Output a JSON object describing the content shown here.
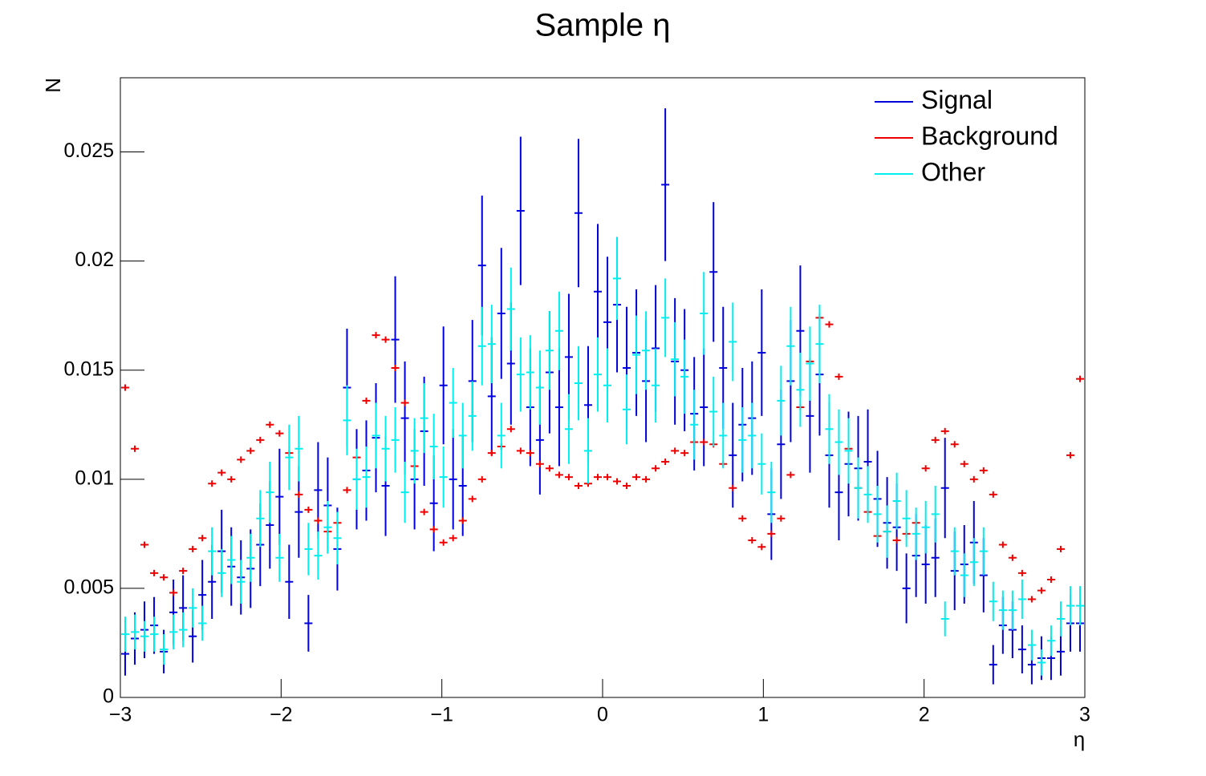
{
  "chart_data": {
    "type": "errorbar",
    "title": "Sample η",
    "x_label": "η",
    "y_label": "N",
    "x": [
      -2.97,
      -2.91,
      -2.85,
      -2.79,
      -2.73,
      -2.67,
      -2.61,
      -2.55,
      -2.49,
      -2.43,
      -2.37,
      -2.31,
      -2.25,
      -2.19,
      -2.13,
      -2.07,
      -2.01,
      -1.95,
      -1.89,
      -1.83,
      -1.77,
      -1.71,
      -1.65,
      -1.59,
      -1.53,
      -1.47,
      -1.41,
      -1.35,
      -1.29,
      -1.23,
      -1.17,
      -1.11,
      -1.05,
      -0.99,
      -0.93,
      -0.87,
      -0.81,
      -0.75,
      -0.69,
      -0.63,
      -0.57,
      -0.51,
      -0.45,
      -0.39,
      -0.33,
      -0.27,
      -0.21,
      -0.15,
      -0.09,
      -0.03,
      0.03,
      0.09,
      0.15,
      0.21,
      0.27,
      0.33,
      0.39,
      0.45,
      0.51,
      0.57,
      0.63,
      0.69,
      0.75,
      0.81,
      0.87,
      0.93,
      0.99,
      1.05,
      1.11,
      1.17,
      1.23,
      1.29,
      1.35,
      1.41,
      1.47,
      1.53,
      1.59,
      1.65,
      1.71,
      1.77,
      1.83,
      1.89,
      1.95,
      2.01,
      2.07,
      2.13,
      2.19,
      2.25,
      2.31,
      2.37,
      2.43,
      2.49,
      2.55,
      2.61,
      2.67,
      2.73,
      2.79,
      2.85,
      2.91,
      2.97
    ],
    "series": [
      {
        "name": "Signal",
        "color": "#0000dd",
        "values": [
          0.002,
          0.0027,
          0.0031,
          0.0033,
          0.0021,
          0.0039,
          0.0041,
          0.0028,
          0.0047,
          0.0053,
          0.0067,
          0.006,
          0.0055,
          0.0059,
          0.007,
          0.0079,
          0.0092,
          0.0053,
          0.0085,
          0.0034,
          0.0095,
          0.0088,
          0.0068,
          0.0142,
          0.01,
          0.0104,
          0.0119,
          0.0097,
          0.0164,
          0.0128,
          0.01,
          0.0122,
          0.0089,
          0.0143,
          0.01,
          0.0097,
          0.0145,
          0.0198,
          0.0138,
          0.0176,
          0.0153,
          0.0223,
          0.0133,
          0.0118,
          0.0149,
          0.0133,
          0.0156,
          0.0222,
          0.0134,
          0.0186,
          0.0172,
          0.018,
          0.0151,
          0.0158,
          0.0145,
          0.016,
          0.0235,
          0.0154,
          0.015,
          0.013,
          0.0133,
          0.0195,
          0.0151,
          0.0111,
          0.0125,
          0.0128,
          0.0158,
          0.0084,
          0.0116,
          0.0145,
          0.0168,
          0.0129,
          0.0148,
          0.0111,
          0.0094,
          0.0107,
          0.0105,
          0.0108,
          0.0091,
          0.008,
          0.0078,
          0.005,
          0.0065,
          0.0061,
          0.0064,
          0.0096,
          0.0058,
          0.0061,
          0.0071,
          0.0056,
          0.0015,
          0.0033,
          0.0031,
          0.0022,
          0.0015,
          0.0018,
          0.0018,
          0.0021,
          0.0034,
          0.0034
        ],
        "errors": [
          0.001,
          0.0012,
          0.0013,
          0.0013,
          0.001,
          0.0015,
          0.0015,
          0.0012,
          0.0016,
          0.0017,
          0.0019,
          0.0018,
          0.0017,
          0.0018,
          0.0019,
          0.002,
          0.0022,
          0.0017,
          0.0021,
          0.0013,
          0.0022,
          0.0022,
          0.0019,
          0.0027,
          0.0023,
          0.0023,
          0.0025,
          0.0023,
          0.0029,
          0.0026,
          0.0023,
          0.0025,
          0.0022,
          0.0027,
          0.0023,
          0.0023,
          0.0028,
          0.0032,
          0.0027,
          0.003,
          0.0028,
          0.0034,
          0.0027,
          0.0025,
          0.0028,
          0.0027,
          0.0029,
          0.0034,
          0.0027,
          0.0031,
          0.003,
          0.0031,
          0.0028,
          0.0029,
          0.0028,
          0.0029,
          0.0035,
          0.0029,
          0.0028,
          0.0026,
          0.0027,
          0.0032,
          0.0028,
          0.0024,
          0.0026,
          0.0026,
          0.0029,
          0.0021,
          0.0025,
          0.0028,
          0.003,
          0.0026,
          0.0028,
          0.0024,
          0.0022,
          0.0024,
          0.0024,
          0.0024,
          0.0022,
          0.0021,
          0.002,
          0.0016,
          0.0019,
          0.0018,
          0.0018,
          0.0023,
          0.0018,
          0.0018,
          0.0019,
          0.0017,
          0.0009,
          0.0013,
          0.0013,
          0.0011,
          0.0009,
          0.001,
          0.001,
          0.0011,
          0.0013,
          0.0013
        ]
      },
      {
        "name": "Background",
        "color": "#ee0000",
        "values": [
          0.0142,
          0.0114,
          0.007,
          0.0057,
          0.0055,
          0.0048,
          0.0058,
          0.0068,
          0.0073,
          0.0098,
          0.0103,
          0.01,
          0.0109,
          0.0113,
          0.0118,
          0.0125,
          0.0121,
          0.0112,
          0.0093,
          0.0086,
          0.0081,
          0.0076,
          0.008,
          0.0095,
          0.011,
          0.0136,
          0.0166,
          0.0164,
          0.0151,
          0.0135,
          0.0106,
          0.0085,
          0.0077,
          0.0071,
          0.0073,
          0.0081,
          0.0091,
          0.01,
          0.0112,
          0.0115,
          0.0123,
          0.0113,
          0.0112,
          0.0107,
          0.0105,
          0.0102,
          0.0101,
          0.0097,
          0.0098,
          0.0101,
          0.0101,
          0.0099,
          0.0097,
          0.0101,
          0.01,
          0.0105,
          0.0108,
          0.0113,
          0.0112,
          0.0117,
          0.0117,
          0.0116,
          0.0107,
          0.0096,
          0.0082,
          0.0072,
          0.0069,
          0.0075,
          0.0082,
          0.0102,
          0.0133,
          0.0154,
          0.0174,
          0.0171,
          0.0147,
          0.0114,
          0.0096,
          0.0085,
          0.0074,
          0.0076,
          0.0072,
          0.0075,
          0.008,
          0.0105,
          0.0118,
          0.0122,
          0.0116,
          0.0107,
          0.01,
          0.0104,
          0.0093,
          0.007,
          0.0064,
          0.0057,
          0.0045,
          0.0049,
          0.0054,
          0.0068,
          0.0111,
          0.0146
        ]
      },
      {
        "name": "Other",
        "color": "#00eeee",
        "values": [
          0.0029,
          0.003,
          0.0028,
          0.0029,
          0.0022,
          0.003,
          0.0031,
          0.0041,
          0.0034,
          0.0067,
          0.0057,
          0.0063,
          0.0053,
          0.0064,
          0.0082,
          0.0094,
          0.0064,
          0.011,
          0.0114,
          0.0068,
          0.0065,
          0.0078,
          0.0073,
          0.0127,
          0.01,
          0.0101,
          0.012,
          0.0114,
          0.0118,
          0.0094,
          0.0113,
          0.0128,
          0.0115,
          0.0101,
          0.0135,
          0.012,
          0.0129,
          0.0161,
          0.0162,
          0.012,
          0.0178,
          0.0148,
          0.0149,
          0.0142,
          0.0159,
          0.0168,
          0.0123,
          0.0144,
          0.0113,
          0.0148,
          0.0143,
          0.0192,
          0.0132,
          0.0157,
          0.0159,
          0.0143,
          0.0174,
          0.0155,
          0.0147,
          0.0125,
          0.0176,
          0.0131,
          0.012,
          0.0163,
          0.0118,
          0.012,
          0.0107,
          0.0094,
          0.0136,
          0.0161,
          0.0141,
          0.0153,
          0.0162,
          0.0123,
          0.0117,
          0.0113,
          0.0096,
          0.0093,
          0.0084,
          0.0076,
          0.009,
          0.0082,
          0.0075,
          0.0078,
          0.0084,
          0.0036,
          0.0067,
          0.0056,
          0.0062,
          0.0067,
          0.0044,
          0.004,
          0.004,
          0.0045,
          0.0024,
          0.0016,
          0.0026,
          0.0036,
          0.0042,
          0.0042
        ],
        "errors": [
          0.0008,
          0.0008,
          0.0007,
          0.0008,
          0.0007,
          0.0008,
          0.0008,
          0.0009,
          0.0008,
          0.0011,
          0.0011,
          0.0011,
          0.001,
          0.0011,
          0.0013,
          0.0014,
          0.0011,
          0.0015,
          0.0015,
          0.0012,
          0.0011,
          0.0012,
          0.0012,
          0.0016,
          0.0014,
          0.0014,
          0.0015,
          0.0015,
          0.0015,
          0.0014,
          0.0015,
          0.0016,
          0.0015,
          0.0014,
          0.0016,
          0.0015,
          0.0016,
          0.0018,
          0.0018,
          0.0015,
          0.0019,
          0.0017,
          0.0017,
          0.0017,
          0.0018,
          0.0018,
          0.0016,
          0.0017,
          0.0015,
          0.0017,
          0.0017,
          0.0019,
          0.0016,
          0.0018,
          0.0018,
          0.0017,
          0.0018,
          0.0017,
          0.0017,
          0.0016,
          0.0019,
          0.0016,
          0.0015,
          0.0018,
          0.0015,
          0.0015,
          0.0014,
          0.0014,
          0.0016,
          0.0018,
          0.0017,
          0.0017,
          0.0018,
          0.0016,
          0.0015,
          0.0015,
          0.0014,
          0.0013,
          0.0013,
          0.0012,
          0.0013,
          0.0013,
          0.0012,
          0.0012,
          0.0013,
          0.0008,
          0.0011,
          0.001,
          0.0011,
          0.0011,
          0.0009,
          0.0009,
          0.0009,
          0.0009,
          0.0007,
          0.0006,
          0.0007,
          0.0008,
          0.0009,
          0.0009
        ]
      }
    ],
    "xlim": [
      -3,
      3
    ],
    "ylim": [
      0,
      0.0284
    ],
    "xticks": [
      {
        "value": -3,
        "label": "−3"
      },
      {
        "value": -2,
        "label": "−2"
      },
      {
        "value": -1,
        "label": "−1"
      },
      0,
      1,
      2,
      3
    ],
    "yticks": [
      0,
      0.005,
      0.01,
      0.015,
      0.02,
      0.025
    ],
    "legend": "top-right"
  }
}
